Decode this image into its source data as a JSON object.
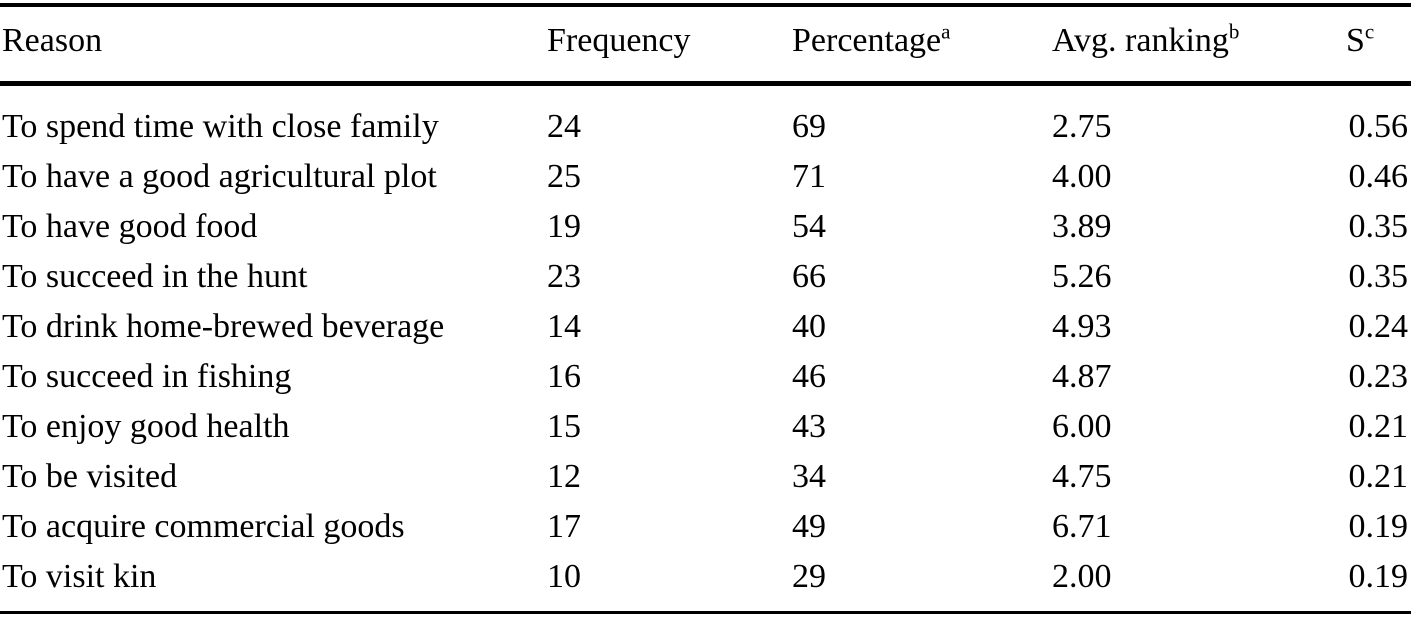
{
  "page": {
    "background_color": "#ffffff",
    "text_color": "#000000"
  },
  "table": {
    "columns": [
      {
        "id": "reason",
        "label": "Reason",
        "superscript": ""
      },
      {
        "id": "frequency",
        "label": "Frequency",
        "superscript": ""
      },
      {
        "id": "percentage",
        "label": "Percentage",
        "superscript": "a"
      },
      {
        "id": "avg_ranking",
        "label": "Avg. ranking",
        "superscript": "b"
      },
      {
        "id": "s",
        "label": "S",
        "superscript": "c"
      }
    ],
    "rows": [
      {
        "reason": "To spend time with close family",
        "frequency": "24",
        "percentage": "69",
        "avg_ranking": "2.75",
        "s": "0.56"
      },
      {
        "reason": "To have a good agricultural plot",
        "frequency": "25",
        "percentage": "71",
        "avg_ranking": "4.00",
        "s": "0.46"
      },
      {
        "reason": "To have good food",
        "frequency": "19",
        "percentage": "54",
        "avg_ranking": "3.89",
        "s": "0.35"
      },
      {
        "reason": "To succeed in the hunt",
        "frequency": "23",
        "percentage": "66",
        "avg_ranking": "5.26",
        "s": "0.35"
      },
      {
        "reason": "To drink home-brewed beverage",
        "frequency": "14",
        "percentage": "40",
        "avg_ranking": "4.93",
        "s": "0.24"
      },
      {
        "reason": "To succeed in fishing",
        "frequency": "16",
        "percentage": "46",
        "avg_ranking": "4.87",
        "s": "0.23"
      },
      {
        "reason": "To enjoy good health",
        "frequency": "15",
        "percentage": "43",
        "avg_ranking": "6.00",
        "s": "0.21"
      },
      {
        "reason": "To be visited",
        "frequency": "12",
        "percentage": "34",
        "avg_ranking": "4.75",
        "s": "0.21"
      },
      {
        "reason": "To acquire commercial goods",
        "frequency": "17",
        "percentage": "49",
        "avg_ranking": "6.71",
        "s": "0.19"
      },
      {
        "reason": "To visit kin",
        "frequency": "10",
        "percentage": "29",
        "avg_ranking": "2.00",
        "s": "0.19"
      }
    ]
  },
  "chart_data": {
    "type": "table",
    "columns": [
      "Reason",
      "Frequency",
      "Percentage",
      "Avg. ranking",
      "S"
    ],
    "footnote_markers": {
      "Percentage": "a",
      "Avg. ranking": "b",
      "S": "c"
    },
    "rows": [
      [
        "To spend time with close family",
        24,
        69,
        2.75,
        0.56
      ],
      [
        "To have a good agricultural plot",
        25,
        71,
        4.0,
        0.46
      ],
      [
        "To have good food",
        19,
        54,
        3.89,
        0.35
      ],
      [
        "To succeed in the hunt",
        23,
        66,
        5.26,
        0.35
      ],
      [
        "To drink home-brewed beverage",
        14,
        40,
        4.93,
        0.24
      ],
      [
        "To succeed in fishing",
        16,
        46,
        4.87,
        0.23
      ],
      [
        "To enjoy good health",
        15,
        43,
        6.0,
        0.21
      ],
      [
        "To be visited",
        12,
        34,
        4.75,
        0.21
      ],
      [
        "To acquire commercial goods",
        17,
        49,
        6.71,
        0.19
      ],
      [
        "To visit kin",
        10,
        29,
        2.0,
        0.19
      ]
    ]
  }
}
